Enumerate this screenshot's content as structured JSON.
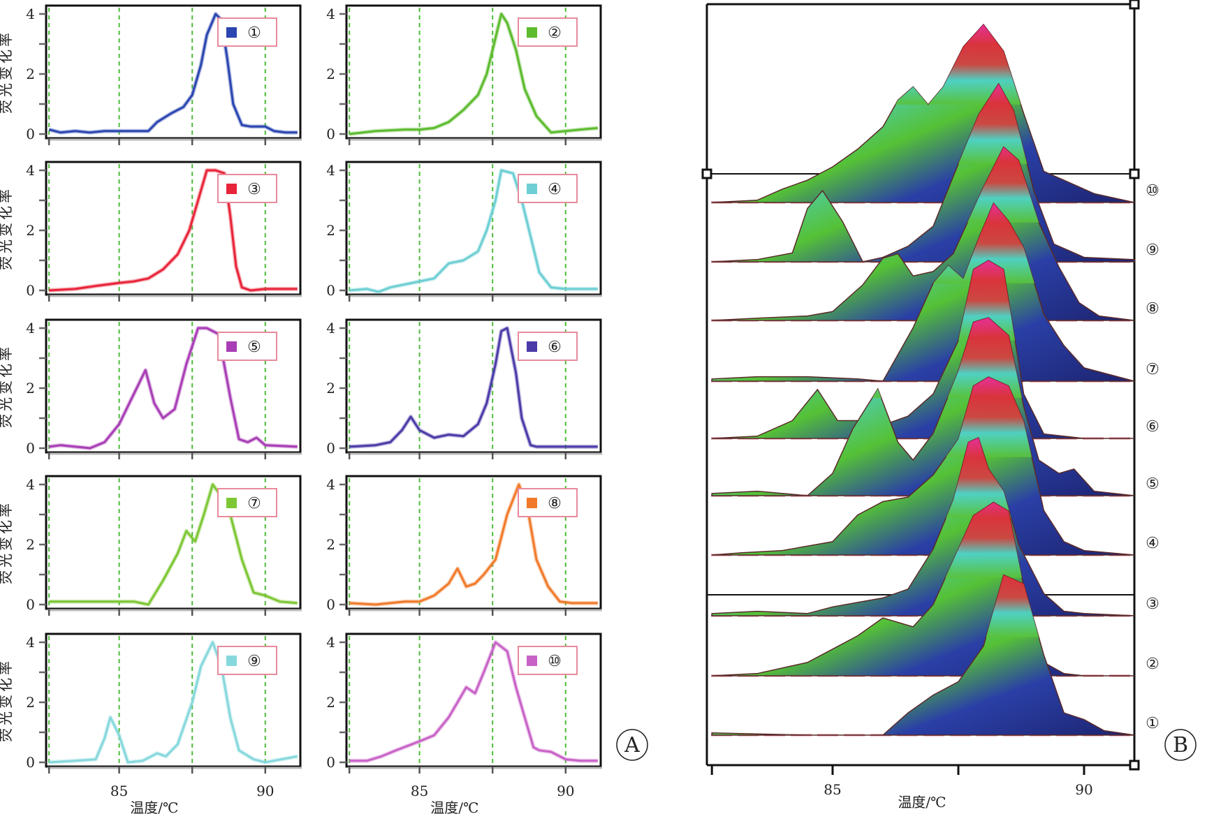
{
  "chart_data": [
    {
      "type": "line",
      "panel": "A",
      "panel_label": "Ⓐ",
      "ylabel": "荧光变化率",
      "xlabel": "温度/℃",
      "xlim": [
        82.5,
        91.2
      ],
      "ylim": [
        0,
        4
      ],
      "yticks": [
        0,
        2,
        4
      ],
      "ytick_labels": [
        "0",
        "2",
        "4"
      ],
      "xticks": [
        85,
        90
      ],
      "xtick_labels": [
        "85",
        "90"
      ],
      "reference_lines_x": [
        82.6,
        85,
        87.5,
        90
      ],
      "subplots": [
        {
          "label": "①",
          "color": "#2b46b0",
          "x": [
            82.6,
            83,
            83.5,
            84,
            84.5,
            85,
            85.5,
            86,
            86.3,
            86.8,
            87.2,
            87.5,
            87.8,
            88.0,
            88.3,
            88.5,
            88.7,
            88.9,
            89.2,
            89.5,
            90,
            90.3,
            90.7,
            91.1
          ],
          "y": [
            0.15,
            0.05,
            0.1,
            0.05,
            0.1,
            0.1,
            0.1,
            0.1,
            0.4,
            0.7,
            0.9,
            1.3,
            2.3,
            3.3,
            4.0,
            3.8,
            2.5,
            1.0,
            0.3,
            0.25,
            0.25,
            0.1,
            0.05,
            0.05
          ]
        },
        {
          "label": "②",
          "color": "#5dbb2e",
          "x": [
            82.6,
            83.5,
            84.5,
            85,
            85.5,
            86,
            86.5,
            87,
            87.3,
            87.6,
            87.8,
            88,
            88.3,
            88.6,
            89,
            89.5,
            90,
            90.5,
            91.1
          ],
          "y": [
            0.0,
            0.1,
            0.15,
            0.15,
            0.2,
            0.4,
            0.8,
            1.3,
            2.0,
            3.2,
            4.0,
            3.7,
            2.8,
            1.5,
            0.6,
            0.05,
            0.1,
            0.15,
            0.2
          ]
        },
        {
          "label": "③",
          "color": "#e8243a",
          "x": [
            82.6,
            83.5,
            84.2,
            85,
            85.5,
            86,
            86.5,
            87,
            87.4,
            87.7,
            88,
            88.3,
            88.6,
            88.8,
            89,
            89.2,
            89.5,
            90,
            91.1
          ],
          "y": [
            0.0,
            0.05,
            0.15,
            0.25,
            0.3,
            0.4,
            0.7,
            1.2,
            2.0,
            3.0,
            4.0,
            4.0,
            3.9,
            2.5,
            0.8,
            0.1,
            0.0,
            0.05,
            0.05
          ]
        },
        {
          "label": "④",
          "color": "#6dcfd3",
          "x": [
            82.6,
            83.2,
            83.6,
            84,
            84.5,
            85,
            85.5,
            86,
            86.5,
            87,
            87.3,
            87.6,
            87.8,
            88.2,
            88.5,
            88.8,
            89.1,
            89.5,
            90,
            91.1
          ],
          "y": [
            0.0,
            0.05,
            -0.05,
            0.1,
            0.2,
            0.3,
            0.4,
            0.9,
            1.0,
            1.3,
            2.0,
            3.0,
            4.0,
            3.9,
            3.0,
            1.8,
            0.6,
            0.1,
            0.05,
            0.05
          ]
        },
        {
          "label": "⑤",
          "color": "#a83db5",
          "x": [
            82.6,
            83,
            83.5,
            84,
            84.5,
            85,
            85.4,
            85.9,
            86.2,
            86.5,
            86.9,
            87.3,
            87.7,
            88,
            88.4,
            88.8,
            89.1,
            89.4,
            89.7,
            90,
            91.1
          ],
          "y": [
            0.05,
            0.1,
            0.05,
            0.0,
            0.2,
            0.8,
            1.6,
            2.6,
            1.5,
            1.0,
            1.3,
            2.8,
            4.0,
            4.0,
            3.8,
            1.7,
            0.3,
            0.2,
            0.35,
            0.1,
            0.05
          ]
        },
        {
          "label": "⑥",
          "color": "#4b3ba8",
          "x": [
            82.6,
            83.5,
            84,
            84.4,
            84.7,
            85,
            85.5,
            86,
            86.5,
            87,
            87.3,
            87.6,
            87.8,
            88,
            88.3,
            88.5,
            88.8,
            89,
            90,
            91.1
          ],
          "y": [
            0.05,
            0.1,
            0.2,
            0.6,
            1.05,
            0.6,
            0.35,
            0.45,
            0.4,
            0.8,
            1.5,
            2.8,
            3.9,
            4.0,
            2.5,
            1.0,
            0.1,
            0.05,
            0.05,
            0.05
          ]
        },
        {
          "label": "⑦",
          "color": "#7dc735",
          "x": [
            82.6,
            83.5,
            84.5,
            85.5,
            86,
            86.5,
            87,
            87.3,
            87.6,
            87.9,
            88.2,
            88.5,
            88.8,
            89.2,
            89.6,
            90,
            90.5,
            91.1
          ],
          "y": [
            0.1,
            0.1,
            0.1,
            0.1,
            0.0,
            0.8,
            1.7,
            2.45,
            2.1,
            3.0,
            4.0,
            3.6,
            3.0,
            1.5,
            0.4,
            0.3,
            0.1,
            0.05
          ]
        },
        {
          "label": "⑧",
          "color": "#f07a2a",
          "x": [
            82.6,
            83.5,
            84.5,
            85,
            85.5,
            86,
            86.3,
            86.6,
            86.9,
            87.2,
            87.6,
            88,
            88.4,
            88.7,
            89,
            89.4,
            89.8,
            90.2,
            91.1
          ],
          "y": [
            0.05,
            0.0,
            0.1,
            0.1,
            0.3,
            0.7,
            1.2,
            0.6,
            0.7,
            1.0,
            1.5,
            3.0,
            4.0,
            3.2,
            1.5,
            0.6,
            0.1,
            0.05,
            0.05
          ]
        },
        {
          "label": "⑨",
          "color": "#86d8dc",
          "x": [
            82.6,
            83.5,
            84.2,
            84.5,
            84.7,
            85,
            85.3,
            85.8,
            86.3,
            86.6,
            87,
            87.5,
            87.8,
            88.2,
            88.5,
            88.8,
            89.1,
            89.6,
            90,
            91.1
          ],
          "y": [
            0.0,
            0.05,
            0.1,
            0.8,
            1.5,
            0.9,
            0.0,
            0.05,
            0.3,
            0.2,
            0.6,
            2.0,
            3.2,
            4.0,
            3.2,
            1.5,
            0.4,
            0.1,
            0.0,
            0.2
          ]
        },
        {
          "label": "⑩",
          "color": "#c862c7",
          "x": [
            82.6,
            83.2,
            83.7,
            84.2,
            84.6,
            85,
            85.5,
            86,
            86.3,
            86.6,
            86.9,
            87.2,
            87.6,
            88,
            88.3,
            88.6,
            88.9,
            89.1,
            89.5,
            90,
            90.5,
            91.1
          ],
          "y": [
            0.05,
            0.05,
            0.2,
            0.4,
            0.55,
            0.7,
            0.9,
            1.5,
            2.0,
            2.5,
            2.3,
            3.0,
            4.0,
            3.7,
            2.5,
            1.5,
            0.5,
            0.4,
            0.35,
            0.1,
            0.05,
            0.05
          ]
        }
      ]
    },
    {
      "type": "area",
      "panel": "B",
      "panel_label": "Ⓑ",
      "xlabel": "温度/℃",
      "xlim": [
        82.5,
        91.0
      ],
      "xticks": [
        85,
        87.5,
        90
      ],
      "xtick_labels": [
        "85",
        "",
        "90"
      ],
      "gradient_colors": [
        "#7ee6e0",
        "#4fcfcf",
        "#57c23a",
        "#e82a3a",
        "#f21b8e",
        "#2a3fa6"
      ],
      "series": [
        {
          "label": "①",
          "x": [
            82.6,
            84.5,
            85,
            86,
            86.5,
            87,
            87.5,
            88,
            88.4,
            88.8,
            89.2,
            89.6,
            90,
            90.4,
            91
          ],
          "y": [
            0.05,
            0.0,
            0.0,
            0.0,
            0.5,
            0.9,
            1.2,
            2.0,
            3.6,
            3.4,
            1.8,
            0.5,
            0.35,
            0.1,
            0.0
          ]
        },
        {
          "label": "②",
          "x": [
            82.6,
            83.5,
            84.5,
            85,
            85.5,
            86,
            86.6,
            87,
            87.4,
            87.8,
            88.2,
            88.5,
            88.8,
            89.2,
            89.6,
            90,
            91
          ],
          "y": [
            0.0,
            0.05,
            0.3,
            0.6,
            0.9,
            1.3,
            1.1,
            1.6,
            2.6,
            3.6,
            3.9,
            3.7,
            2.0,
            0.3,
            0.05,
            0.0,
            0.0
          ]
        },
        {
          "label": "③",
          "x": [
            82.6,
            83.5,
            84.5,
            85,
            85.5,
            86,
            86.5,
            87,
            87.4,
            87.7,
            87.9,
            88.1,
            88.4,
            88.7,
            89.2,
            89.6,
            90,
            91
          ],
          "y": [
            0.05,
            0.1,
            0.05,
            0.2,
            0.3,
            0.4,
            0.6,
            1.5,
            2.6,
            3.9,
            4.0,
            3.3,
            2.8,
            1.6,
            0.5,
            0.1,
            0.05,
            0.0
          ]
        },
        {
          "label": "④",
          "x": [
            82.6,
            83.2,
            84,
            85,
            85.5,
            86,
            86.5,
            87,
            87.5,
            87.8,
            88.1,
            88.5,
            88.8,
            89.2,
            89.6,
            90,
            91
          ],
          "y": [
            0.0,
            0.05,
            0.1,
            0.3,
            0.9,
            1.2,
            1.3,
            1.8,
            2.6,
            3.8,
            4.0,
            3.8,
            3.0,
            1.0,
            0.3,
            0.1,
            0.0
          ]
        },
        {
          "label": "⑤",
          "x": [
            82.6,
            83.5,
            84.5,
            85,
            85.4,
            85.9,
            86.3,
            86.6,
            87,
            87.5,
            87.8,
            88.1,
            88.5,
            88.8,
            89.1,
            89.5,
            89.8,
            90.2,
            91
          ],
          "y": [
            0.05,
            0.1,
            0.0,
            0.5,
            1.5,
            2.4,
            1.2,
            0.8,
            1.4,
            2.8,
            3.9,
            4.0,
            3.6,
            2.0,
            0.8,
            0.5,
            0.6,
            0.1,
            0.0
          ]
        },
        {
          "label": "⑥",
          "x": [
            82.6,
            83.5,
            84.2,
            84.7,
            85.1,
            85.5,
            86,
            86.5,
            87,
            87.5,
            87.8,
            88.1,
            88.4,
            88.8,
            89.2,
            90,
            91
          ],
          "y": [
            0.0,
            0.05,
            0.4,
            1.1,
            0.4,
            0.4,
            0.3,
            0.5,
            1.0,
            2.2,
            3.8,
            4.0,
            3.8,
            1.0,
            0.1,
            0.0,
            0.0
          ]
        },
        {
          "label": "⑦",
          "x": [
            82.6,
            83.5,
            84.5,
            85.5,
            86,
            86.6,
            87,
            87.3,
            87.6,
            87.9,
            88.2,
            88.5,
            88.8,
            89.2,
            89.6,
            90,
            91
          ],
          "y": [
            0.05,
            0.1,
            0.1,
            0.05,
            0.0,
            1.2,
            2.2,
            2.6,
            2.3,
            3.2,
            4.0,
            3.6,
            3.0,
            1.5,
            0.8,
            0.3,
            0.0
          ]
        },
        {
          "label": "⑧",
          "x": [
            82.6,
            83.5,
            84.5,
            85,
            85.6,
            86,
            86.3,
            86.6,
            87,
            87.4,
            88,
            88.4,
            88.7,
            89.1,
            89.5,
            89.9,
            90.3,
            91
          ],
          "y": [
            0.0,
            0.05,
            0.1,
            0.2,
            0.8,
            1.4,
            1.5,
            1.0,
            1.1,
            1.5,
            3.0,
            3.9,
            3.6,
            2.2,
            1.2,
            0.4,
            0.1,
            0.0
          ]
        },
        {
          "label": "⑨",
          "x": [
            82.6,
            83.5,
            84.2,
            84.5,
            84.8,
            85.2,
            85.6,
            86,
            86.5,
            87,
            87.5,
            87.9,
            88.3,
            88.6,
            89,
            89.4,
            90,
            91
          ],
          "y": [
            0.0,
            0.05,
            0.2,
            1.2,
            1.6,
            0.9,
            0.0,
            0.1,
            0.35,
            0.8,
            2.2,
            3.3,
            4.0,
            3.4,
            1.6,
            0.4,
            0.1,
            0.05
          ]
        },
        {
          "label": "⑩",
          "x": [
            82.6,
            83.5,
            84,
            84.5,
            85,
            85.5,
            86,
            86.3,
            86.6,
            86.9,
            87.2,
            87.6,
            88,
            88.4,
            88.8,
            89.2,
            89.6,
            90.2,
            91
          ],
          "y": [
            0.0,
            0.05,
            0.3,
            0.5,
            0.8,
            1.2,
            1.7,
            2.3,
            2.6,
            2.2,
            2.6,
            3.5,
            4.0,
            3.4,
            2.0,
            0.7,
            0.5,
            0.2,
            0.0
          ]
        }
      ]
    }
  ]
}
